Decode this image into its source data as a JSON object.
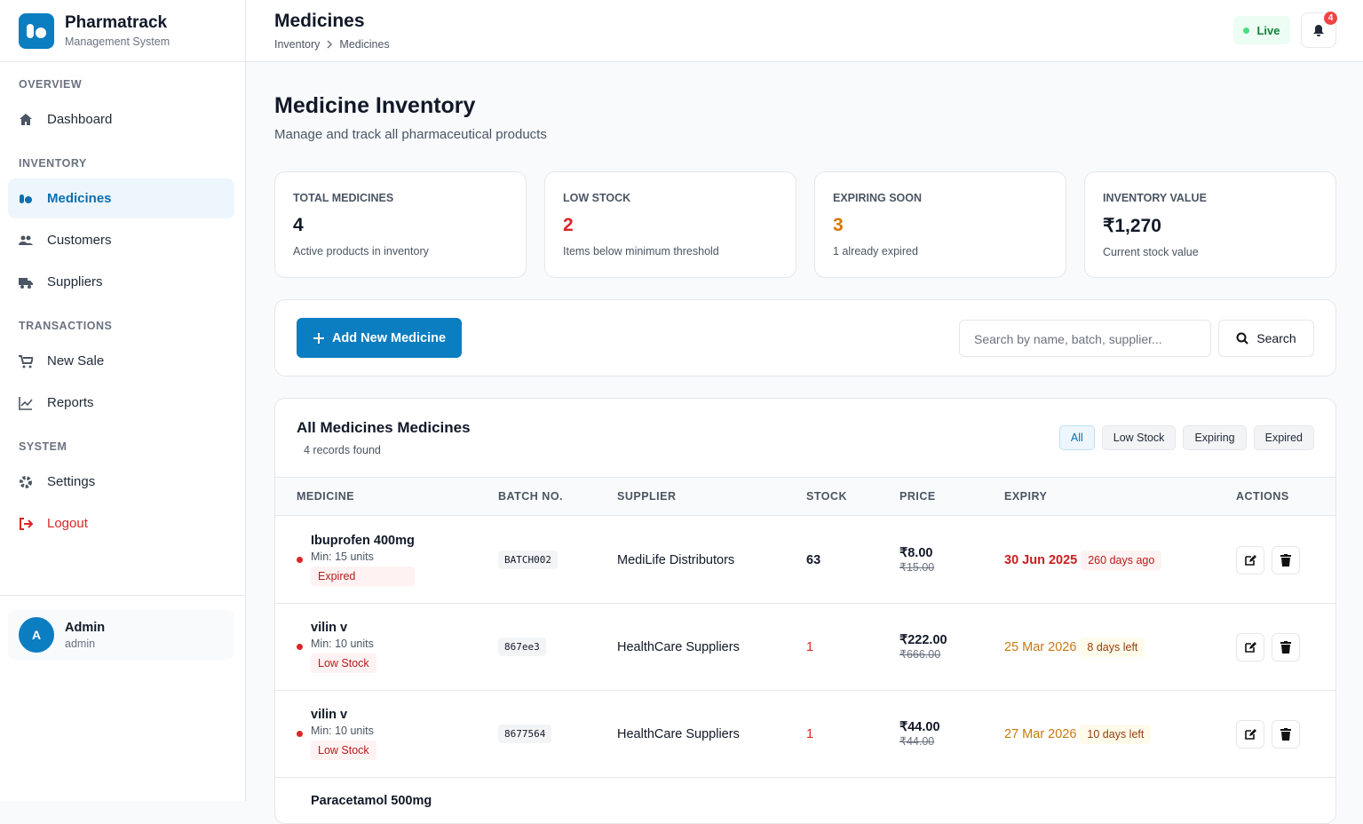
{
  "sidebar": {
    "brand": "Pharmatrack",
    "brand_sub": "Management System",
    "sections": [
      {
        "title": "OVERVIEW",
        "items": [
          "Dashboard"
        ]
      },
      {
        "title": "INVENTORY",
        "items": [
          "Medicines",
          "Customers",
          "Suppliers"
        ]
      },
      {
        "title": "TRANSACTIONS",
        "items": [
          "New Sale",
          "Reports"
        ]
      },
      {
        "title": "SYSTEM",
        "items": [
          "Settings",
          "Logout"
        ]
      }
    ],
    "user": {
      "initial": "A",
      "name": "Admin",
      "role": "admin"
    }
  },
  "header": {
    "title": "Medicines",
    "breadcrumb": [
      "Inventory",
      "Medicines"
    ],
    "status": "Live",
    "notifications": 4
  },
  "page": {
    "title": "Medicine Inventory",
    "subtitle": "Manage and track all pharmaceutical products"
  },
  "stats": [
    {
      "label": "TOTAL MEDICINES",
      "value": 4,
      "note": "Active products in inventory"
    },
    {
      "label": "LOW STOCK",
      "value": 2,
      "note": "Items below minimum threshold"
    },
    {
      "label": "EXPIRING SOON",
      "value": 3,
      "note": "1 already expired"
    },
    {
      "label": "INVENTORY VALUE",
      "value": "₹1,270",
      "note": "Current stock value"
    }
  ],
  "toolbar": {
    "add_button": "Add New Medicine",
    "search_placeholder": "Search by name, batch, supplier...",
    "search_button": "Search"
  },
  "table": {
    "title": "All Medicines Medicines",
    "count": "4 records found",
    "filters": [
      "All",
      "Low Stock",
      "Expiring",
      "Expired"
    ],
    "columns": [
      "MEDICINE",
      "BATCH NO.",
      "SUPPLIER",
      "STOCK",
      "PRICE",
      "EXPIRY",
      "ACTIONS"
    ],
    "rows": [
      {
        "name": "Ibuprofen 400mg",
        "min": "Min: 15 units",
        "status": "Expired",
        "batch": "BATCH002",
        "supplier": "MediLife Distributors",
        "stock": 63,
        "price": "₹8.00",
        "mrp": "₹15.00",
        "expiry": "30 Jun 2025",
        "expiry_note": "260 days ago"
      },
      {
        "name": "vilin v",
        "min": "Min: 10 units",
        "status": "Low Stock",
        "batch": "867ee3",
        "supplier": "HealthCare Suppliers",
        "stock": 1,
        "price": "₹222.00",
        "mrp": "₹666.00",
        "expiry": "25 Mar 2026",
        "expiry_note": "8 days left"
      },
      {
        "name": "vilin v",
        "min": "Min: 10 units",
        "status": "Low Stock",
        "batch": "8677564",
        "supplier": "HealthCare Suppliers",
        "stock": 1,
        "price": "₹44.00",
        "mrp": "₹44.00",
        "expiry": "27 Mar 2026",
        "expiry_note": "10 days left"
      },
      {
        "name": "Paracetamol 500mg"
      }
    ]
  }
}
